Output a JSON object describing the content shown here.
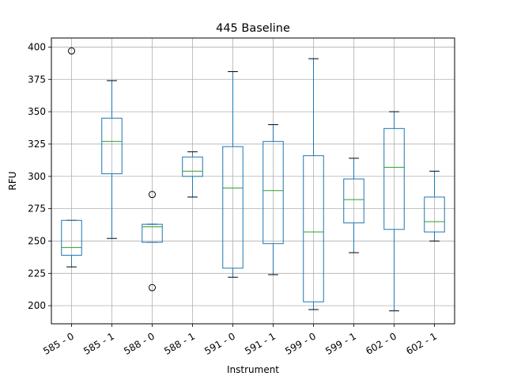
{
  "chart_data": {
    "type": "boxplot",
    "title": "445 Baseline",
    "xlabel": "Instrument",
    "ylabel": "RFU",
    "ylim": [
      186,
      407
    ],
    "yticks": [
      200,
      225,
      250,
      275,
      300,
      325,
      350,
      375,
      400
    ],
    "grid": true,
    "colors": {
      "box": "#1f77b4",
      "median": "#2ca02c",
      "whisker": "#000000",
      "grid": "#b0b0b0"
    },
    "categories": [
      "585 - 0",
      "585 - 1",
      "588 - 0",
      "588 - 1",
      "591 - 0",
      "591 - 1",
      "599 - 0",
      "599 - 1",
      "602 - 0",
      "602 - 1"
    ],
    "boxes": [
      {
        "label": "585 - 0",
        "whislo": 230,
        "q1": 239,
        "med": 245,
        "q3": 266,
        "whishi": 266,
        "fliers": [
          397
        ]
      },
      {
        "label": "585 - 1",
        "whislo": 252,
        "q1": 302,
        "med": 327,
        "q3": 345,
        "whishi": 374,
        "fliers": []
      },
      {
        "label": "588 - 0",
        "whislo": 249,
        "q1": 249,
        "med": 261,
        "q3": 263,
        "whishi": 263,
        "fliers": [
          286,
          214
        ]
      },
      {
        "label": "588 - 1",
        "whislo": 284,
        "q1": 300,
        "med": 304,
        "q3": 315,
        "whishi": 319,
        "fliers": []
      },
      {
        "label": "591 - 0",
        "whislo": 222,
        "q1": 229,
        "med": 291,
        "q3": 323,
        "whishi": 381,
        "fliers": []
      },
      {
        "label": "591 - 1",
        "whislo": 224,
        "q1": 248,
        "med": 289,
        "q3": 327,
        "whishi": 340,
        "fliers": []
      },
      {
        "label": "599 - 0",
        "whislo": 197,
        "q1": 203,
        "med": 257,
        "q3": 316,
        "whishi": 391,
        "fliers": []
      },
      {
        "label": "599 - 1",
        "whislo": 241,
        "q1": 264,
        "med": 282,
        "q3": 298,
        "whishi": 314,
        "fliers": []
      },
      {
        "label": "602 - 0",
        "whislo": 196,
        "q1": 259,
        "med": 307,
        "q3": 337,
        "whishi": 350,
        "fliers": []
      },
      {
        "label": "602 - 1",
        "whislo": 250,
        "q1": 257,
        "med": 265,
        "q3": 284,
        "whishi": 304,
        "fliers": []
      }
    ]
  }
}
